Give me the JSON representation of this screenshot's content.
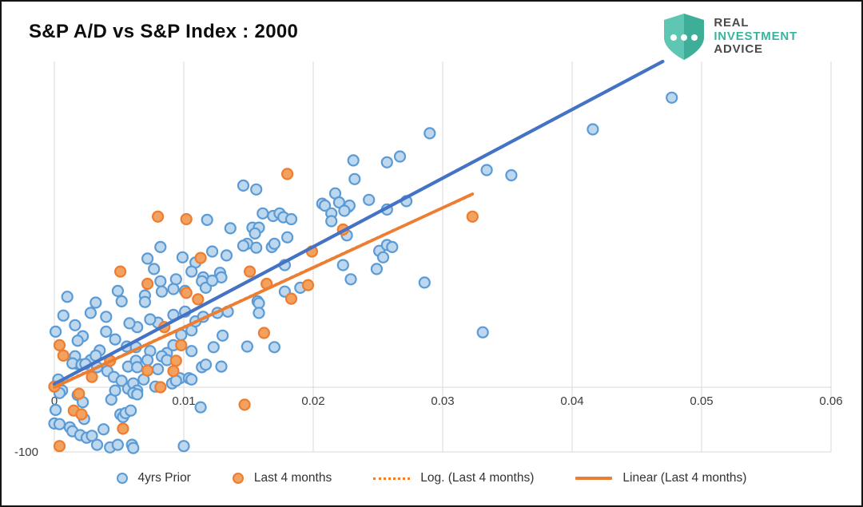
{
  "header": {
    "title": "S&P A/D vs S&P Index : 2000"
  },
  "logo": {
    "line1": "REAL",
    "line2": "INVESTMENT",
    "line3": "ADVICE",
    "shield_light": "#5EC6B2",
    "shield_dark": "#3FAE98",
    "text_dark": "#4A4A4A",
    "text_teal": "#37B5A0"
  },
  "legend": [
    {
      "label": "4yrs Prior",
      "marker": "circle",
      "color": "#5B9BD5",
      "fill": "#BDD7EE"
    },
    {
      "label": "Last 4 months",
      "marker": "circle",
      "color": "#ED7D31",
      "fill": "#F2A15E"
    },
    {
      "label": "Log. (Last 4 months)",
      "marker": "dotted-line",
      "color": "#ED7D31"
    },
    {
      "label": "Linear (Last 4 months)",
      "marker": "solid-line",
      "color": "#ED7D31"
    }
  ],
  "chart_data": {
    "type": "scatter",
    "title": "S&P A/D vs S&P Index : 2000",
    "xlabel": "",
    "ylabel": "",
    "xlim": [
      0,
      0.06
    ],
    "ylim": [
      -100,
      504
    ],
    "x_ticks": [
      0,
      0.01,
      0.02,
      0.03,
      0.04,
      0.05,
      0.06
    ],
    "x_tick_labels": [
      "0",
      "0.01",
      "0.02",
      "0.03",
      "0.04",
      "0.05",
      "0.06"
    ],
    "y_tick_labels_visible": [
      "-100"
    ],
    "h_gridlines": [
      0,
      -100
    ],
    "grid_color": "#D9D9D9",
    "legend_position": "bottom",
    "series": [
      {
        "name": "4yrs Prior",
        "color": "#5B9BD5",
        "fill": "#BDD7EE",
        "points": [
          [
            0.0477,
            448
          ],
          [
            0.0416,
            399
          ],
          [
            0.029,
            393
          ],
          [
            0.0231,
            351
          ],
          [
            0.0257,
            348
          ],
          [
            0.0267,
            357
          ],
          [
            0.0232,
            322
          ],
          [
            0.0334,
            336
          ],
          [
            0.0353,
            328
          ],
          [
            0.0217,
            300
          ],
          [
            0.022,
            286
          ],
          [
            0.0207,
            284
          ],
          [
            0.0227,
            279
          ],
          [
            0.0243,
            290
          ],
          [
            0.0272,
            288
          ],
          [
            0.0146,
            312
          ],
          [
            0.0156,
            306
          ],
          [
            0.0118,
            259
          ],
          [
            0.0136,
            246
          ],
          [
            0.0149,
            222
          ],
          [
            0.0146,
            219
          ],
          [
            0.0082,
            217
          ],
          [
            0.0072,
            199
          ],
          [
            0.0099,
            201
          ],
          [
            0.0077,
            183
          ],
          [
            0.0122,
            210
          ],
          [
            0.0133,
            204
          ],
          [
            0.0109,
            193
          ],
          [
            0.0106,
            179
          ],
          [
            0.0115,
            170
          ],
          [
            0.0128,
            177
          ],
          [
            0.0129,
            170
          ],
          [
            0.0082,
            164
          ],
          [
            0.0083,
            148
          ],
          [
            0.0094,
            167
          ],
          [
            0.0092,
            152
          ],
          [
            0.0101,
            149
          ],
          [
            0.0114,
            164
          ],
          [
            0.0117,
            154
          ],
          [
            0.0122,
            165
          ],
          [
            0.0049,
            149
          ],
          [
            0.001,
            140
          ],
          [
            0.0032,
            131
          ],
          [
            0.0052,
            133
          ],
          [
            0.007,
            142
          ],
          [
            0.007,
            132
          ],
          [
            0.0161,
            269
          ],
          [
            0.0209,
            281
          ],
          [
            0.0214,
            269
          ],
          [
            0.0214,
            257
          ],
          [
            0.0228,
            281
          ],
          [
            0.0224,
            273
          ],
          [
            0.0257,
            275
          ],
          [
            0.0169,
            265
          ],
          [
            0.0174,
            269
          ],
          [
            0.0177,
            263
          ],
          [
            0.0183,
            260
          ],
          [
            0.0153,
            247
          ],
          [
            0.0158,
            247
          ],
          [
            0.0155,
            238
          ],
          [
            0.0156,
            216
          ],
          [
            0.0168,
            217
          ],
          [
            0.017,
            222
          ],
          [
            0.018,
            232
          ],
          [
            0.0226,
            235
          ],
          [
            0.0178,
            189
          ],
          [
            0.0223,
            189
          ],
          [
            0.0251,
            211
          ],
          [
            0.0254,
            201
          ],
          [
            0.0257,
            220
          ],
          [
            0.0261,
            217
          ],
          [
            0.0249,
            183
          ],
          [
            0.0229,
            167
          ],
          [
            0.0286,
            162
          ],
          [
            0.019,
            154
          ],
          [
            0.0178,
            148
          ],
          [
            0.0157,
            133
          ],
          [
            0.0007,
            111
          ],
          [
            0.0016,
            96
          ],
          [
            0.0001,
            86
          ],
          [
            0.0022,
            79
          ],
          [
            0.0018,
            72
          ],
          [
            0.0028,
            42
          ],
          [
            0.0018,
            36
          ],
          [
            0.0035,
            57
          ],
          [
            0.0028,
            115
          ],
          [
            0.004,
            109
          ],
          [
            0.004,
            86
          ],
          [
            0.0047,
            74
          ],
          [
            0.0056,
            63
          ],
          [
            0.0063,
            62
          ],
          [
            0.0074,
            56
          ],
          [
            0.0087,
            53
          ],
          [
            0.0092,
            65
          ],
          [
            0.0098,
            81
          ],
          [
            0.0106,
            88
          ],
          [
            0.0109,
            102
          ],
          [
            0.0115,
            109
          ],
          [
            0.0092,
            112
          ],
          [
            0.0101,
            117
          ],
          [
            0.008,
            100
          ],
          [
            0.0074,
            105
          ],
          [
            0.0064,
            93
          ],
          [
            0.0058,
            99
          ],
          [
            0.0106,
            56
          ],
          [
            0.0057,
            32
          ],
          [
            0.008,
            28
          ],
          [
            0.0114,
            31
          ],
          [
            0.0126,
            115
          ],
          [
            0.0134,
            117
          ],
          [
            0.0158,
            130
          ],
          [
            0.0158,
            115
          ],
          [
            0.013,
            80
          ],
          [
            0.0123,
            62
          ],
          [
            0.0149,
            63
          ],
          [
            0.017,
            62
          ],
          [
            0.0129,
            32
          ],
          [
            0.0113,
            -31
          ],
          [
            0.0016,
            48
          ],
          [
            0.0014,
            37
          ],
          [
            0.0021,
            35
          ],
          [
            0.0024,
            36
          ],
          [
            0.0032,
            49
          ],
          [
            0.0033,
            31
          ],
          [
            0.0041,
            25
          ],
          [
            0.0003,
            12
          ],
          [
            0.0006,
            -5
          ],
          [
            0.0046,
            16
          ],
          [
            0.0052,
            10
          ],
          [
            0.0057,
            -2
          ],
          [
            0.0063,
            41
          ],
          [
            0.0064,
            31
          ],
          [
            0.0069,
            12
          ],
          [
            0.0061,
            6
          ],
          [
            0.0072,
            42
          ],
          [
            0.0083,
            48
          ],
          [
            0.0087,
            42
          ],
          [
            0.0097,
            14
          ],
          [
            0.0104,
            14
          ],
          [
            0.0078,
            1
          ],
          [
            0.0064,
            -5
          ],
          [
            0.0117,
            35
          ],
          [
            0.0091,
            6
          ],
          [
            0.0094,
            10
          ],
          [
            0.0106,
            12
          ],
          [
            0.0004,
            -9
          ],
          [
            0.0001,
            -35
          ],
          [
            0.0018,
            -12
          ],
          [
            0.0022,
            -23
          ],
          [
            0.0023,
            -49
          ],
          [
            0.0,
            -56
          ],
          [
            0.0004,
            -57
          ],
          [
            0.0012,
            -62
          ],
          [
            0.0014,
            -68
          ],
          [
            0.002,
            -74
          ],
          [
            0.0025,
            -78
          ],
          [
            0.0029,
            -75
          ],
          [
            0.0038,
            -65
          ],
          [
            0.0044,
            -19
          ],
          [
            0.0047,
            -5
          ],
          [
            0.0051,
            -42
          ],
          [
            0.0053,
            -46
          ],
          [
            0.0055,
            -40
          ],
          [
            0.0059,
            -36
          ],
          [
            0.0061,
            -9
          ],
          [
            0.0064,
            -11
          ],
          [
            0.0033,
            -89
          ],
          [
            0.0043,
            -93
          ],
          [
            0.0049,
            -89
          ],
          [
            0.006,
            -89
          ],
          [
            0.0061,
            -94
          ],
          [
            0.01,
            -91
          ],
          [
            0.0331,
            85
          ]
        ]
      },
      {
        "name": "Last 4 months",
        "color": "#ED7D31",
        "fill": "#F2A15E",
        "points": [
          [
            0.018,
            330
          ],
          [
            0.0323,
            264
          ],
          [
            0.008,
            264
          ],
          [
            0.0102,
            260
          ],
          [
            0.0113,
            200
          ],
          [
            0.0051,
            179
          ],
          [
            0.0072,
            160
          ],
          [
            0.0102,
            146
          ],
          [
            0.0111,
            136
          ],
          [
            0.0223,
            244
          ],
          [
            0.0199,
            210
          ],
          [
            0.0151,
            179
          ],
          [
            0.0164,
            160
          ],
          [
            0.0196,
            158
          ],
          [
            0.0183,
            137
          ],
          [
            0.0162,
            84
          ],
          [
            0.0004,
            65
          ],
          [
            0.0043,
            41
          ],
          [
            0.0085,
            93
          ],
          [
            0.0098,
            65
          ],
          [
            0.0092,
            25
          ],
          [
            0.0007,
            49
          ],
          [
            0.0029,
            16
          ],
          [
            0.0072,
            26
          ],
          [
            0.0094,
            41
          ],
          [
            0.0082,
            0
          ],
          [
            0.0,
            1
          ],
          [
            0.0019,
            -10
          ],
          [
            0.0015,
            -36
          ],
          [
            0.0021,
            -42
          ],
          [
            0.0053,
            -64
          ],
          [
            0.0004,
            -91
          ],
          [
            0.0147,
            -27
          ]
        ]
      }
    ],
    "trendlines": [
      {
        "name": "Linear (4yrs Prior)",
        "color": "#4472C4",
        "style": "solid",
        "width": 4.2,
        "points": [
          [
            0.0,
            5
          ],
          [
            0.047,
            504
          ]
        ]
      },
      {
        "name": "Log. (Last 4 months)",
        "color": "#ED7D31",
        "style": "dotted",
        "width": 3,
        "points": [
          [
            0.0002,
            3
          ],
          [
            0.004,
            38
          ],
          [
            0.012,
            112
          ],
          [
            0.02,
            186
          ],
          [
            0.0264,
            245
          ],
          [
            0.0322,
            297
          ]
        ]
      },
      {
        "name": "Linear (Last 4 months)",
        "color": "#ED7D31",
        "style": "solid",
        "width": 3.8,
        "points": [
          [
            0.0,
            0
          ],
          [
            0.0323,
            299
          ]
        ]
      }
    ]
  }
}
